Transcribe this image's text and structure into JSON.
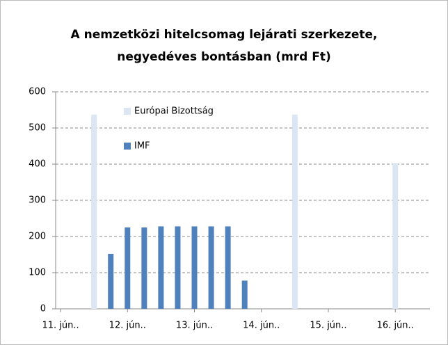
{
  "chart_data": {
    "type": "bar",
    "title": [
      "A nemzetközi hitelcsomag lejárati szerkezete,",
      "negyedéves bontásban (mrd Ft)"
    ],
    "categories": [
      "11. jún..",
      null,
      null,
      null,
      "12. jún..",
      null,
      null,
      null,
      "13. jún..",
      null,
      null,
      null,
      "14. jún..",
      null,
      null,
      null,
      "15. jún..",
      null,
      null,
      null,
      "16. jún..",
      null
    ],
    "series": [
      {
        "name": "Európai Bizottság",
        "color": "#dce6f2",
        "values": [
          null,
          null,
          537,
          null,
          null,
          null,
          null,
          null,
          null,
          null,
          null,
          null,
          null,
          null,
          537,
          null,
          null,
          null,
          null,
          null,
          403,
          null
        ]
      },
      {
        "name": "IMF",
        "color": "#4f81bd",
        "values": [
          null,
          null,
          null,
          152,
          225,
          225,
          228,
          228,
          228,
          228,
          228,
          78,
          null,
          null,
          null,
          null,
          null,
          null,
          null,
          null,
          null,
          null
        ]
      }
    ],
    "ylim": [
      0,
      600
    ],
    "yticks": [
      0,
      100,
      200,
      300,
      400,
      500,
      600
    ],
    "grid": true,
    "legend": "top-left"
  }
}
